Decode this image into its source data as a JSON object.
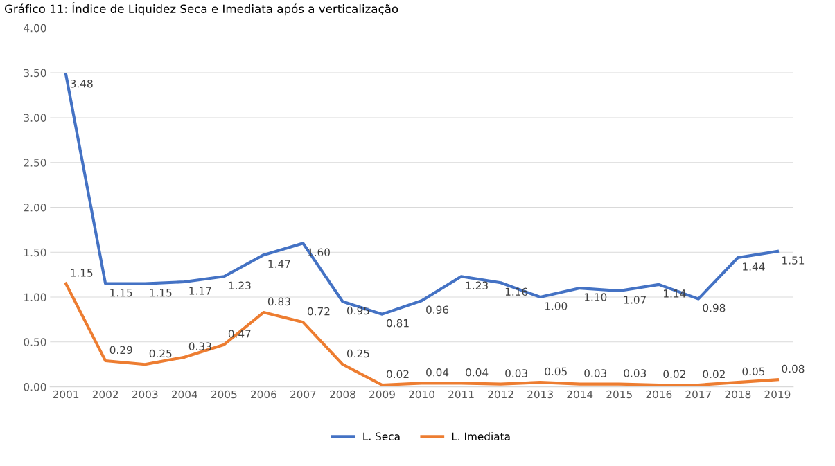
{
  "chart_data": {
    "type": "line",
    "title": "Gráfico 11: Índice de Liquidez Seca e Imediata após a verticalização",
    "categories": [
      "2001",
      "2002",
      "2003",
      "2004",
      "2005",
      "2006",
      "2007",
      "2008",
      "2009",
      "2010",
      "2011",
      "2012",
      "2013",
      "2014",
      "2015",
      "2016",
      "2017",
      "2018",
      "2019"
    ],
    "series": [
      {
        "name": "L. Seca",
        "color": "#4472c4",
        "values": [
          3.48,
          1.15,
          1.15,
          1.17,
          1.23,
          1.47,
          1.6,
          0.95,
          0.81,
          0.96,
          1.23,
          1.16,
          1.0,
          1.1,
          1.07,
          1.14,
          0.98,
          1.44,
          1.51
        ],
        "value_labels": [
          "3.48",
          "1.15",
          "1.15",
          "1.17",
          "1.23",
          "1.47",
          "1.60",
          "0.95",
          "0.81",
          "0.96",
          "1.23",
          "1.16",
          "1.00",
          "1.10",
          "1.07",
          "1.14",
          "0.98",
          "1.44",
          "1.51"
        ]
      },
      {
        "name": "L. Imediata",
        "color": "#ed7d31",
        "values": [
          1.15,
          0.29,
          0.25,
          0.33,
          0.47,
          0.83,
          0.72,
          0.25,
          0.02,
          0.04,
          0.04,
          0.03,
          0.05,
          0.03,
          0.03,
          0.02,
          0.02,
          0.05,
          0.08
        ],
        "value_labels": [
          "1.15",
          "0.29",
          "0.25",
          "0.33",
          "0.47",
          "0.83",
          "0.72",
          "0.25",
          "0.02",
          "0.04",
          "0.04",
          "0.03",
          "0.05",
          "0.03",
          "0.03",
          "0.02",
          "0.02",
          "0.05",
          "0.08"
        ]
      }
    ],
    "ylim": [
      0,
      4
    ],
    "yticks": [
      {
        "value": 0,
        "label": "0.00"
      },
      {
        "value": 0.5,
        "label": "0.50"
      },
      {
        "value": 1,
        "label": "1.00"
      },
      {
        "value": 1.5,
        "label": "1.50"
      },
      {
        "value": 2,
        "label": "2.00"
      },
      {
        "value": 2.5,
        "label": "2.50"
      },
      {
        "value": 3,
        "label": "3.00"
      },
      {
        "value": 3.5,
        "label": "3.50"
      },
      {
        "value": 4,
        "label": "4.00"
      }
    ],
    "grid": "y",
    "legend": "bottom",
    "marker": "none",
    "line_style": "solid"
  }
}
